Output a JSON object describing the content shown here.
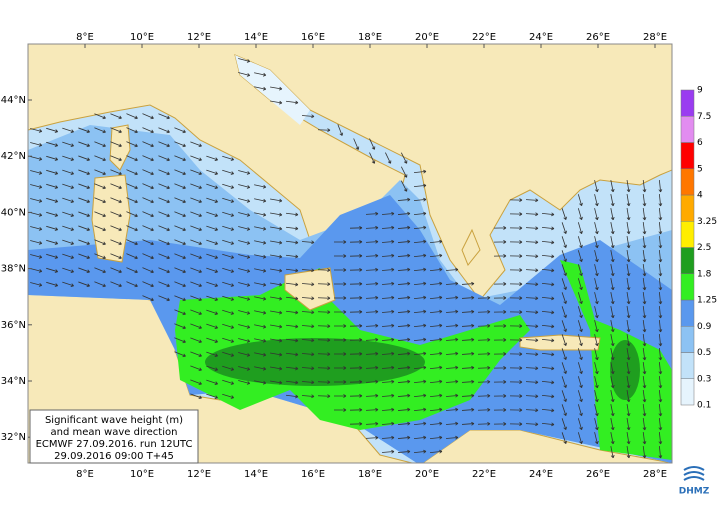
{
  "map": {
    "lon_labels": [
      "8°E",
      "10°E",
      "12°E",
      "14°E",
      "16°E",
      "18°E",
      "20°E",
      "22°E",
      "24°E",
      "26°E",
      "28°E"
    ],
    "lat_labels": [
      "44°N",
      "42°N",
      "40°N",
      "38°N",
      "36°N",
      "34°N",
      "32°N"
    ],
    "colorbar": {
      "levels": [
        0.1,
        0.3,
        0.5,
        0.9,
        1.25,
        1.8,
        2.5,
        3.25,
        4,
        5,
        6,
        7.5,
        9
      ],
      "colors": [
        "#e6f4fd",
        "#c2e2f9",
        "#8cc2f3",
        "#5a98ee",
        "#33ee22",
        "#1f9e1f",
        "#ffee00",
        "#ffaa00",
        "#ff7700",
        "#ff0000",
        "#e28cf0",
        "#9a3cf0"
      ]
    },
    "info": [
      "Significant wave height (m)",
      "and mean wave direction",
      "ECMWF 27.09.2016. run 12UTC",
      "29.09.2016 09:00  T+45"
    ],
    "logo": "DHMZ"
  }
}
